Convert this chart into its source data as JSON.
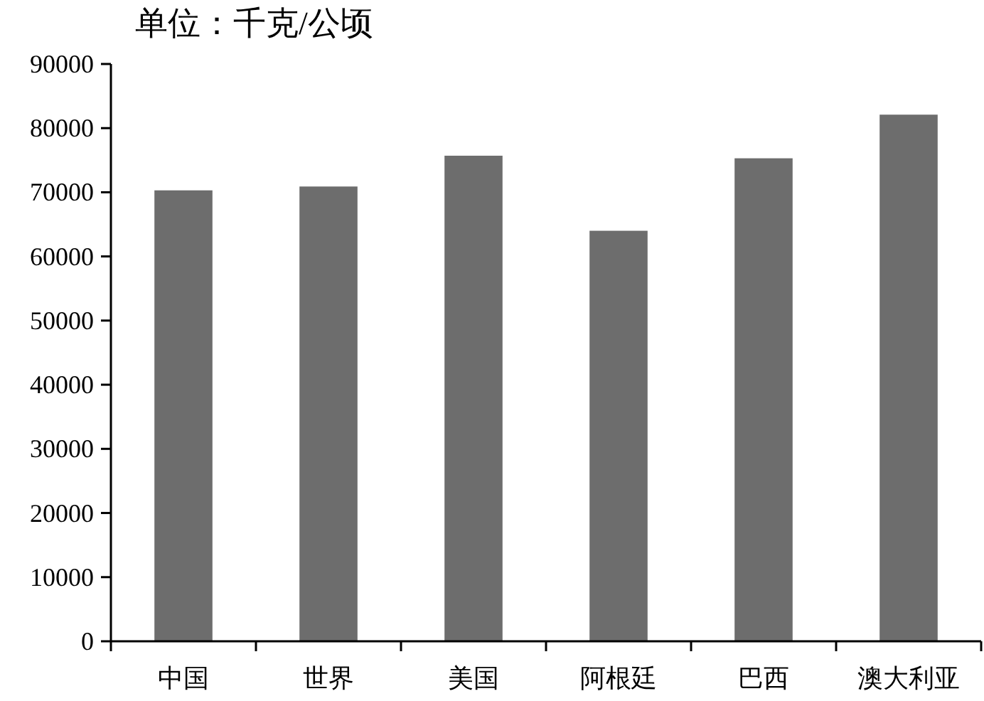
{
  "chart_data": {
    "type": "bar",
    "ylabel": "单位：千克/公顷",
    "categories": [
      "中国",
      "世界",
      "美国",
      "阿根廷",
      "巴西",
      "澳大利亚"
    ],
    "values": [
      70300,
      70900,
      75700,
      64000,
      75300,
      82100
    ],
    "color": "#6d6d6d",
    "ylim": [
      0,
      90000
    ],
    "yticks": [
      0,
      10000,
      20000,
      30000,
      40000,
      50000,
      60000,
      70000,
      80000,
      90000
    ]
  }
}
